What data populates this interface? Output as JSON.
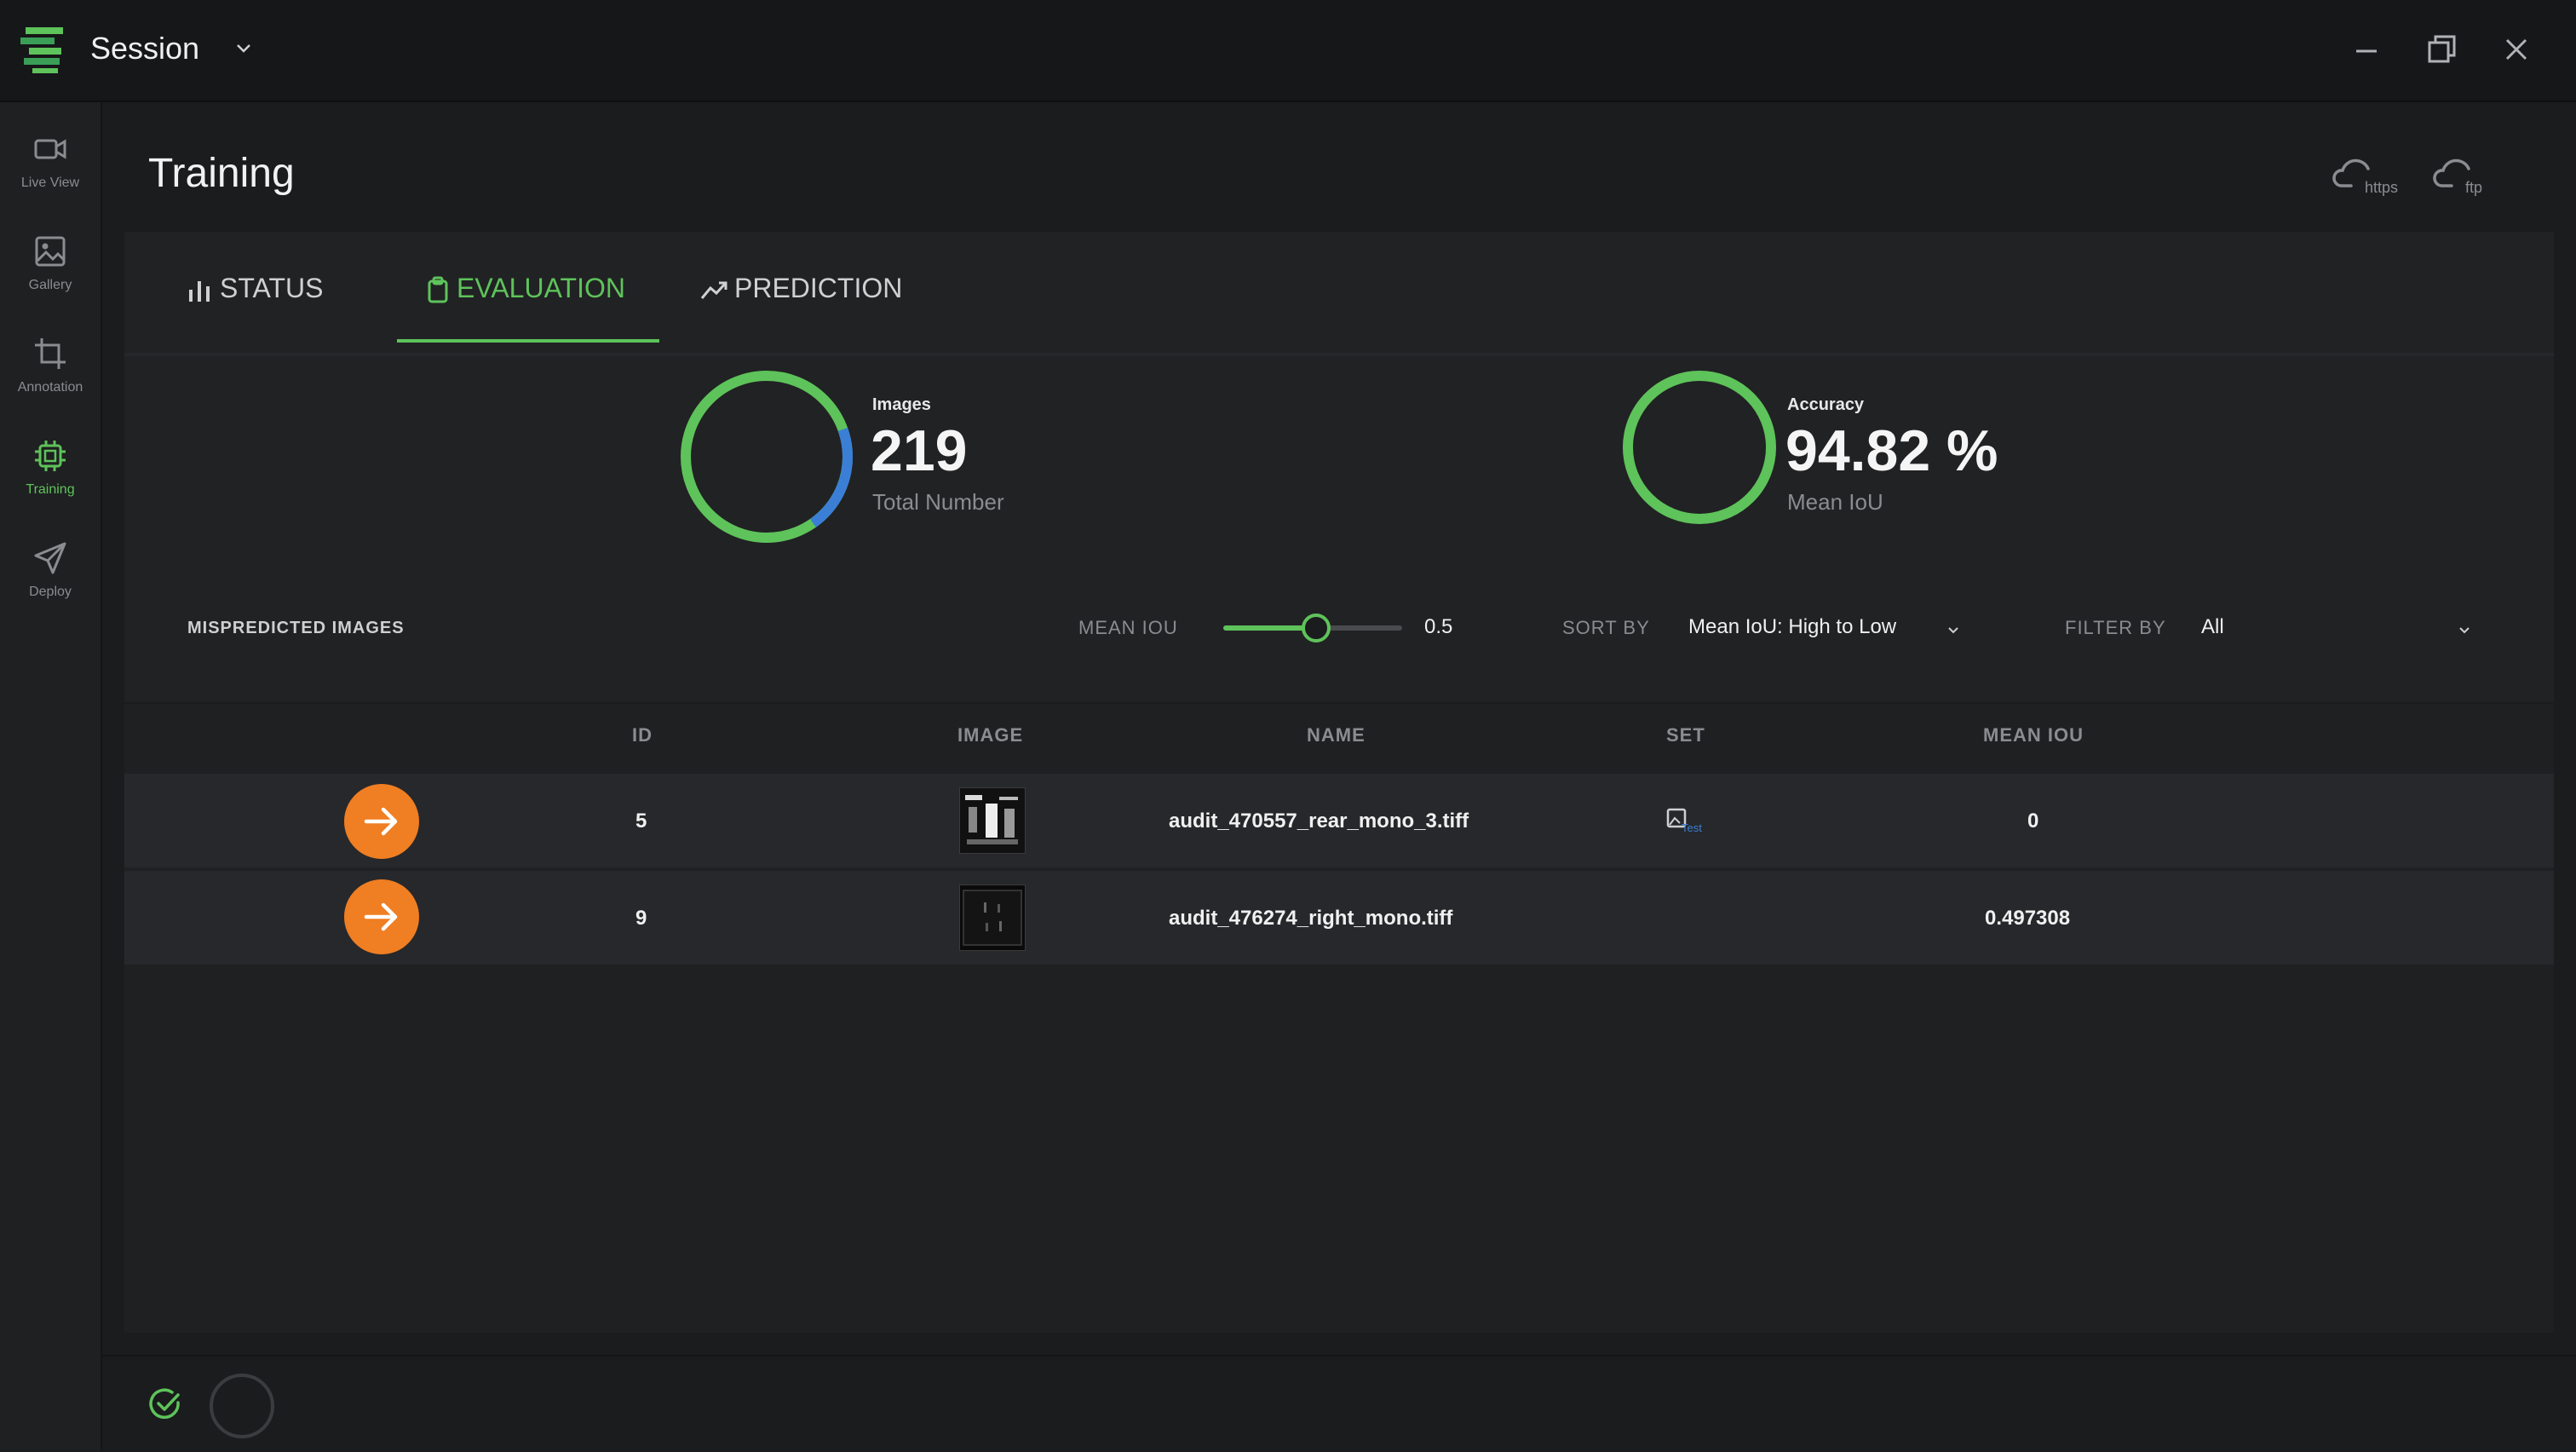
{
  "window": {
    "title": "Session"
  },
  "sidebar": {
    "items": [
      {
        "label": "Live View",
        "icon": "video-camera-icon"
      },
      {
        "label": "Gallery",
        "icon": "image-icon"
      },
      {
        "label": "Annotation",
        "icon": "crop-icon"
      },
      {
        "label": "Training",
        "icon": "chip-icon",
        "active": true
      },
      {
        "label": "Deploy",
        "icon": "send-icon"
      }
    ]
  },
  "page": {
    "title": "Training"
  },
  "header": {
    "cloud_labels": [
      "https",
      "ftp"
    ]
  },
  "tabs": [
    {
      "label": "STATUS",
      "icon": "bar-chart-icon"
    },
    {
      "label": "EVALUATION",
      "icon": "clipboard-icon",
      "active": true
    },
    {
      "label": "PREDICTION",
      "icon": "trend-up-icon"
    }
  ],
  "stats": {
    "images": {
      "title": "Images",
      "value": "219",
      "subtitle": "Total Number"
    },
    "accuracy": {
      "title": "Accuracy",
      "value": "94.82 %",
      "subtitle": "Mean IoU",
      "fraction": 0.9482
    }
  },
  "controls": {
    "mispredicted_label": "MISPREDICTED IMAGES",
    "mean_iou_label": "MEAN IOU",
    "mean_iou_value": "0.5",
    "slider_fraction": 0.5,
    "sort_label": "SORT BY",
    "sort_value": "Mean IoU: High to Low",
    "filter_label": "FILTER BY",
    "filter_value": "All"
  },
  "table": {
    "headers": {
      "id": "ID",
      "image": "IMAGE",
      "name": "NAME",
      "set": "SET",
      "mean_iou": "MEAN IOU"
    },
    "rows": [
      {
        "id": "5",
        "name": "audit_470557_rear_mono_3.tiff",
        "set": "Test",
        "mean_iou": "0"
      },
      {
        "id": "9",
        "name": "audit_476274_right_mono.tiff",
        "set": "",
        "mean_iou": "0.497308"
      }
    ]
  },
  "colors": {
    "accent": "#5ec35a",
    "blue": "#3a7fd5",
    "orange": "#f07e22",
    "background": "#1b1c1e"
  }
}
